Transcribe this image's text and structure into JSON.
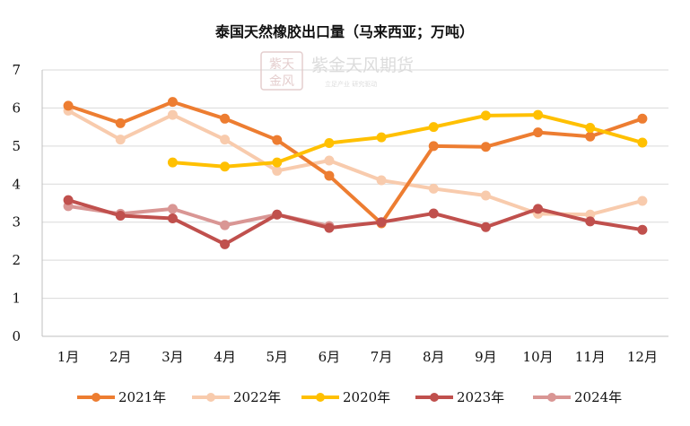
{
  "chart_data": {
    "type": "line",
    "title": "泰国天然橡胶出口量（马来西亚；万吨）",
    "categories": [
      "1月",
      "2月",
      "3月",
      "4月",
      "5月",
      "6月",
      "7月",
      "8月",
      "9月",
      "10月",
      "11月",
      "12月"
    ],
    "ylim": [
      0,
      7
    ],
    "yticks": [
      "0",
      "1",
      "2",
      "3",
      "4",
      "5",
      "6",
      "7"
    ],
    "grid": true,
    "legend_position": "bottom",
    "series": [
      {
        "name": "2021年",
        "color": "#ED7D31",
        "values": [
          6.06,
          5.6,
          6.16,
          5.72,
          5.16,
          4.22,
          2.97,
          5.0,
          4.98,
          5.36,
          5.25,
          5.72
        ]
      },
      {
        "name": "2022年",
        "color": "#F8CBAD",
        "values": [
          5.93,
          5.17,
          5.82,
          5.17,
          4.35,
          4.62,
          4.1,
          3.88,
          3.7,
          3.22,
          3.2,
          3.56
        ]
      },
      {
        "name": "2020年",
        "color": "#FFC000",
        "values": [
          null,
          null,
          4.57,
          4.46,
          4.57,
          5.08,
          5.23,
          5.5,
          5.8,
          5.82,
          5.48,
          5.09
        ]
      },
      {
        "name": "2023年",
        "color": "#C0504D",
        "values": [
          3.58,
          3.17,
          3.1,
          2.42,
          3.2,
          2.85,
          3.0,
          3.23,
          2.87,
          3.35,
          3.02,
          2.8
        ]
      },
      {
        "name": "2024年",
        "color": "#D99694",
        "values": [
          3.42,
          3.22,
          3.35,
          2.92,
          3.2,
          2.9,
          null,
          null,
          null,
          null,
          null,
          null
        ]
      }
    ]
  },
  "watermark": {
    "logo_text": "紫金天风期货",
    "slogan": "立足产业 研究驱动",
    "seal_text": "紫天金风"
  }
}
